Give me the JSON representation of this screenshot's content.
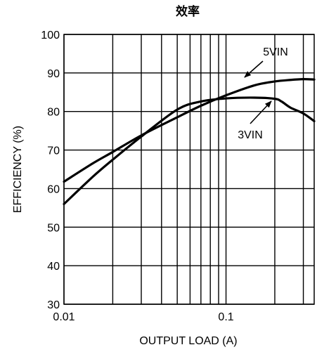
{
  "chart_data": {
    "type": "line",
    "title": "效率",
    "xlabel": "OUTPUT LOAD (A)",
    "ylabel": "EFFICIENCY (%)",
    "x_scale": "log",
    "xlim": [
      0.01,
      0.35
    ],
    "ylim": [
      30,
      100
    ],
    "x_ticks": [
      0.01,
      0.1
    ],
    "x_tick_labels": [
      "0.01",
      "0.1"
    ],
    "y_ticks": [
      30,
      40,
      50,
      60,
      70,
      80,
      90,
      100
    ],
    "y_tick_labels": [
      "30",
      "40",
      "50",
      "60",
      "70",
      "80",
      "90",
      "100"
    ],
    "grid": true,
    "series": [
      {
        "name": "5VIN",
        "x": [
          0.01,
          0.015,
          0.02,
          0.03,
          0.05,
          0.07,
          0.1,
          0.15,
          0.2,
          0.25,
          0.3,
          0.35
        ],
        "y": [
          61.8,
          66.5,
          69.5,
          73.8,
          78.5,
          81.5,
          84.2,
          86.8,
          87.8,
          88.2,
          88.4,
          88.3
        ]
      },
      {
        "name": "3VIN",
        "x": [
          0.01,
          0.015,
          0.02,
          0.03,
          0.05,
          0.07,
          0.1,
          0.15,
          0.2,
          0.22,
          0.25,
          0.3,
          0.35
        ],
        "y": [
          56.0,
          63.0,
          67.5,
          73.5,
          80.5,
          82.6,
          83.4,
          83.6,
          83.3,
          82.6,
          81.0,
          79.5,
          77.5
        ]
      }
    ],
    "annotations": [
      {
        "text": "5VIN",
        "series": "5VIN"
      },
      {
        "text": "3VIN",
        "series": "3VIN"
      }
    ]
  }
}
